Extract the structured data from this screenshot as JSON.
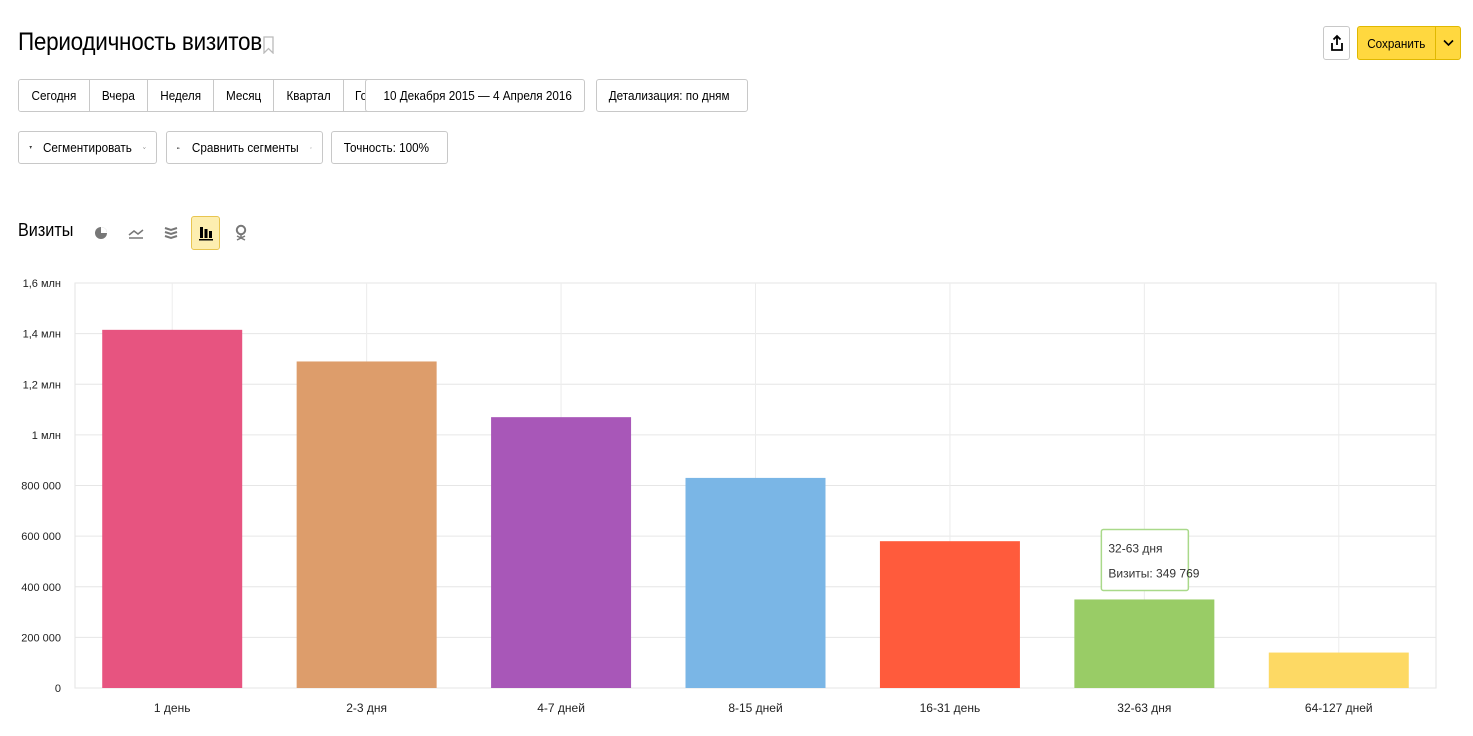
{
  "page": {
    "title": "Периодичность визитов"
  },
  "toolbar": {
    "period_tabs": [
      "Сегодня",
      "Вчера",
      "Неделя",
      "Месяц",
      "Квартал",
      "Год"
    ],
    "date_range": "10 Декабря 2015 — 4 Апреля 2016",
    "detail": "Детализация: по дням",
    "segment": "Сегментировать",
    "compare": "Сравнить сегменты",
    "accuracy": "Точность: 100%",
    "save_label": "Сохранить"
  },
  "section": {
    "title": "Визиты",
    "view_icons": [
      "pie-chart-icon",
      "line-chart-icon",
      "area-chart-icon",
      "bar-chart-icon",
      "map-icon"
    ],
    "active_view": "bar-chart-icon"
  },
  "colors": {
    "accent": "#ffd83f",
    "bars": [
      "#e75480",
      "#dd9d6b",
      "#a857b8",
      "#7ab6e6",
      "#ff5b3c",
      "#99cc66",
      "#fdd964"
    ]
  },
  "chart_data": {
    "type": "bar",
    "categories": [
      "1 день",
      "2-3 дня",
      "4-7 дней",
      "8-15 дней",
      "16-31 день",
      "32-63 дня",
      "64-127 дней"
    ],
    "values": [
      1415000,
      1290000,
      1070000,
      830000,
      580000,
      349769,
      140000
    ],
    "ylim": [
      0,
      1600000
    ],
    "yticks": [
      0,
      200000,
      400000,
      600000,
      800000,
      1000000,
      1200000,
      1400000,
      1600000
    ],
    "ytick_labels": [
      "0",
      "200 000",
      "400 000",
      "600 000",
      "800 000",
      "1 млн",
      "1,2 млн",
      "1,4 млн",
      "1,6 млн"
    ],
    "grid": true,
    "tooltip": {
      "category": "32-63 дня",
      "label": "Визиты: 349 769"
    }
  }
}
